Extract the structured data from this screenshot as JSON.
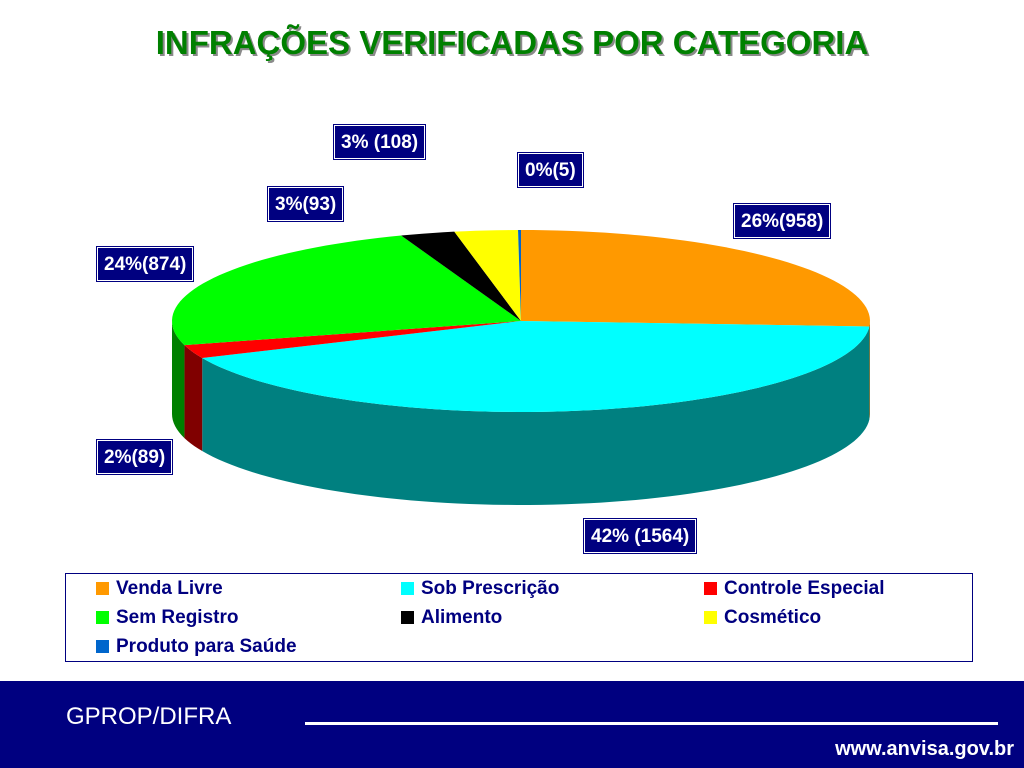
{
  "title": "INFRAÇÕES VERIFICADAS POR CATEGORIA",
  "chart_data": {
    "type": "pie",
    "title": "INFRAÇÕES VERIFICADAS POR CATEGORIA",
    "categories": [
      "Venda Livre",
      "Sob Prescrição",
      "Controle Especial",
      "Sem Registro",
      "Alimento",
      "Cosmético",
      "Produto para Saúde"
    ],
    "values": [
      958,
      1564,
      89,
      874,
      93,
      108,
      5
    ],
    "percents": [
      26,
      42,
      2,
      24,
      3,
      3,
      0
    ],
    "labels": [
      "26%(958)",
      "42% (1564)",
      "2%(89)",
      "24%(874)",
      "3%(93)",
      "3% (108)",
      "0%(5)"
    ],
    "colors": [
      "#FF9900",
      "#00FFFF",
      "#FF0000",
      "#00FF00",
      "#000000",
      "#FFFF00",
      "#0066CC"
    ],
    "legend_placement": "bottom"
  },
  "footer": {
    "left": "GPROP/DIFRA",
    "right": "www.anvisa.gov.br"
  }
}
